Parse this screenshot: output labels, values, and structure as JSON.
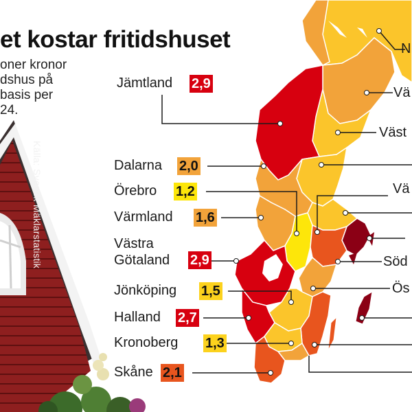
{
  "title": "et kostar fritidshuset",
  "subtitle_lines": [
    "oner kronor",
    "dshus på",
    "basis per",
    "24."
  ],
  "source": "Källa: Svensk Mäklarstatistik",
  "colors": {
    "darkred": "#8b0015",
    "red": "#d7000f",
    "orange": "#e8551e",
    "lightorange": "#f2a33a",
    "yellow": "#fbc52b",
    "brightyellow": "#fde60a",
    "badge_yellow": "#fcd21d"
  },
  "left_regions": [
    {
      "name": "Jämtland",
      "value": "2,9",
      "color": "red"
    },
    {
      "name": "Dalarna",
      "value": "2,0",
      "color": "lightorange"
    },
    {
      "name": "Örebro",
      "value": "1,2",
      "color": "brightyellow"
    },
    {
      "name": "Värmland",
      "value": "1,6",
      "color": "lightorange"
    },
    {
      "name": "Västra\nGötaland",
      "value": "2,9",
      "color": "red"
    },
    {
      "name": "Jönköping",
      "value": "1,5",
      "color": "badge_yellow"
    },
    {
      "name": "Halland",
      "value": "2,7",
      "color": "red"
    },
    {
      "name": "Kronoberg",
      "value": "1,3",
      "color": "badge_yellow"
    },
    {
      "name": "Skåne",
      "value": "2,1",
      "color": "orange"
    }
  ],
  "right_labels": [
    "N",
    "Vä",
    "Väst",
    "Vä",
    "Söd",
    "Ös"
  ]
}
